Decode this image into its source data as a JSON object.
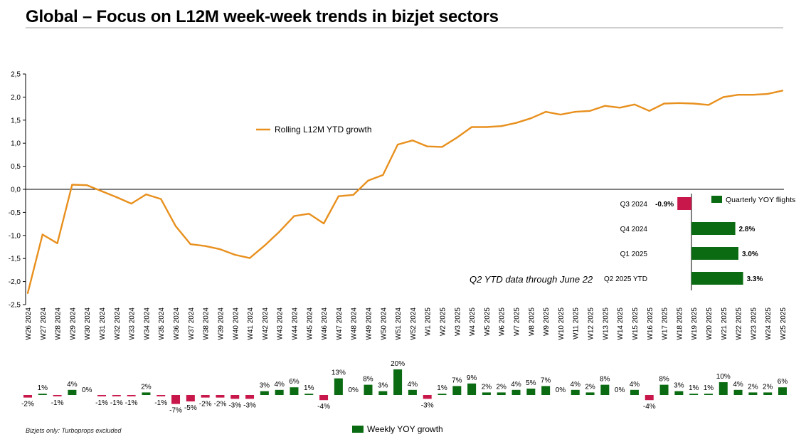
{
  "title": "Global – Focus on L12M week-week trends in bizjet sectors",
  "footnote": "Bizjets only: Turboprops excluded",
  "ytd_note": "Q2 YTD data through June 22",
  "colors": {
    "line": "#e8901e",
    "positive": "#0b6b12",
    "negative": "#c8174a",
    "axis": "#000000",
    "grid": "#cfcfcf"
  },
  "chart_data": [
    {
      "type": "line",
      "series": [
        {
          "name": "Rolling L12M YTD growth",
          "values": [
            -2.25,
            -0.98,
            -1.17,
            0.1,
            0.09,
            -0.04,
            -0.17,
            -0.31,
            -0.11,
            -0.21,
            -0.8,
            -1.19,
            -1.23,
            -1.3,
            -1.42,
            -1.49,
            -1.22,
            -0.92,
            -0.58,
            -0.53,
            -0.74,
            -0.15,
            -0.12,
            0.19,
            0.31,
            0.97,
            1.06,
            0.93,
            0.92,
            1.12,
            1.35,
            1.35,
            1.37,
            1.44,
            1.54,
            1.68,
            1.62,
            1.68,
            1.7,
            1.81,
            1.77,
            1.84,
            1.7,
            1.86,
            1.87,
            1.86,
            1.83,
            2.0,
            2.05,
            2.05,
            2.07,
            2.14
          ]
        }
      ],
      "ylim": [
        -2.5,
        2.5
      ],
      "yticks": [
        "2,5",
        "2,0",
        "1,5",
        "1,0",
        "0,5",
        "0,0",
        "-0,5",
        "-1,0",
        "-1,5",
        "-2,0",
        "-2,5"
      ],
      "categories": [
        "W26 2024",
        "W27 2024",
        "W28 2024",
        "W29 2024",
        "W30 2024",
        "W31 2024",
        "W32 2024",
        "W33 2024",
        "W34 2024",
        "W35 2024",
        "W36 2024",
        "W37 2024",
        "W38 2024",
        "W39 2024",
        "W40 2024",
        "W41 2024",
        "W42 2024",
        "W43 2024",
        "W44 2024",
        "W45 2024",
        "W46 2024",
        "W47 2024",
        "W48 2024",
        "W49 2024",
        "W50 2024",
        "W51 2024",
        "W52 2024",
        "W1 2025",
        "W2 2025",
        "W3 2025",
        "W4 2025",
        "W5 2025",
        "W6 2025",
        "W7 2025",
        "W8 2025",
        "W9 2025",
        "W10 2025",
        "W11 2025",
        "W12 2025",
        "W13 2025",
        "W14 2025",
        "W15 2025",
        "W16 2025",
        "W17 2025",
        "W18 2025",
        "W19 2025",
        "W20 2025",
        "W21 2025",
        "W22 2025",
        "W23 2025",
        "W24 2025",
        "W25 2025"
      ],
      "legend": "upper-middle"
    },
    {
      "type": "bar",
      "series": [
        {
          "name": "Weekly YOY growth",
          "values": [
            -2,
            1,
            -1,
            4,
            0,
            -1,
            -1,
            -1,
            2,
            -1,
            -7,
            -5,
            -2,
            -2,
            -3,
            -3,
            3,
            4,
            6,
            1,
            -4,
            13,
            0,
            8,
            3,
            20,
            4,
            -3,
            1,
            7,
            9,
            2,
            2,
            4,
            5,
            7,
            0,
            4,
            2,
            8,
            0,
            4,
            -4,
            8,
            3,
            1,
            1,
            10,
            4,
            2,
            2,
            6
          ],
          "labels": [
            "-2%",
            "1%",
            "-1%",
            "4%",
            "0%",
            "-1%",
            "-1%",
            "-1%",
            "2%",
            "-1%",
            "-7%",
            "-5%",
            "-2%",
            "-2%",
            "-3%",
            "-3%",
            "3%",
            "4%",
            "6%",
            "1%",
            "-4%",
            "13%",
            "0%",
            "8%",
            "3%",
            "20%",
            "4%",
            "-3%",
            "1%",
            "7%",
            "9%",
            "2%",
            "2%",
            "4%",
            "5%",
            "7%",
            "0%",
            "4%",
            "2%",
            "8%",
            "0%",
            "4%",
            "-4%",
            "8%",
            "3%",
            "1%",
            "1%",
            "10%",
            "4%",
            "2%",
            "2%",
            "6%"
          ]
        }
      ],
      "legend": "bottom"
    },
    {
      "type": "bar",
      "orientation": "horizontal",
      "categories": [
        "Q3 2024",
        "Q4 2024",
        "Q1 2025",
        "Q2 2025 YTD"
      ],
      "series": [
        {
          "name": "Quarterly YOY flights",
          "values": [
            -0.9,
            2.8,
            3.0,
            3.3
          ],
          "labels": [
            "-0.9%",
            "2.8%",
            "3.0%",
            "3.3%"
          ]
        }
      ],
      "legend": "top-right"
    }
  ]
}
